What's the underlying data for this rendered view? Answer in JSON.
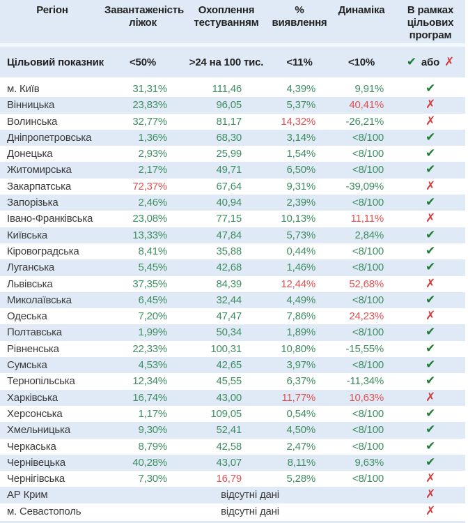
{
  "colors": {
    "row_stripe": "#dfeaf6",
    "value_good": "#3e8e62",
    "value_bad": "#e05252",
    "check_mark": "#1d7b33",
    "cross_mark": "#d23b3b",
    "text": "#3b3b3b",
    "header_text": "#222222"
  },
  "marks": {
    "check": "✔",
    "cross": "✗"
  },
  "header": {
    "col_labels": [
      "Регіон",
      "Завантаженість\nліжок",
      "Охоплення\nтестуванням",
      "%\nвиявлення",
      "Динаміка",
      "В рамках\nцільових\nпрограм"
    ]
  },
  "target_row": {
    "label": "Цільовий показник",
    "values": [
      "<50%",
      ">24 на 100 тис.",
      "<11%",
      "<10%"
    ],
    "legend_check": "✔",
    "legend_or": "або",
    "legend_cross": "✗"
  },
  "chart_data": {
    "type": "table",
    "columns": [
      "Регіон",
      "Завантаженість ліжок",
      "Охоплення тестуванням",
      "% виявлення",
      "Динаміка",
      "В рамках цільових програм"
    ],
    "target_thresholds": [
      "<50%",
      ">24 на 100 тис.",
      "<11%",
      "<10%",
      "✔ або ✗"
    ],
    "missing_data_label": "відсутні дані",
    "rows": [
      {
        "region": "м. Київ",
        "values": [
          [
            "31,31%",
            "green"
          ],
          [
            "111,46",
            "green"
          ],
          [
            "4,39%",
            "green"
          ],
          [
            "9,91%",
            "green"
          ]
        ],
        "meets": "check"
      },
      {
        "region": "Вінницька",
        "values": [
          [
            "23,83%",
            "green"
          ],
          [
            "96,05",
            "green"
          ],
          [
            "5,37%",
            "green"
          ],
          [
            "40,41%",
            "red"
          ]
        ],
        "meets": "cross"
      },
      {
        "region": "Волинська",
        "values": [
          [
            "32,77%",
            "green"
          ],
          [
            "81,17",
            "green"
          ],
          [
            "14,32%",
            "red"
          ],
          [
            "-26,21%",
            "green"
          ]
        ],
        "meets": "cross"
      },
      {
        "region": "Дніпропетровська",
        "values": [
          [
            "1,36%",
            "green"
          ],
          [
            "68,30",
            "green"
          ],
          [
            "3,14%",
            "green"
          ],
          [
            "<8/100",
            "green"
          ]
        ],
        "meets": "check"
      },
      {
        "region": "Донецька",
        "values": [
          [
            "2,93%",
            "green"
          ],
          [
            "25,99",
            "green"
          ],
          [
            "1,54%",
            "green"
          ],
          [
            "<8/100",
            "green"
          ]
        ],
        "meets": "check"
      },
      {
        "region": "Житомирська",
        "values": [
          [
            "2,17%",
            "green"
          ],
          [
            "49,71",
            "green"
          ],
          [
            "6,50%",
            "green"
          ],
          [
            "<8/100",
            "green"
          ]
        ],
        "meets": "check"
      },
      {
        "region": "Закарпатська",
        "values": [
          [
            "72,37%",
            "red"
          ],
          [
            "67,64",
            "green"
          ],
          [
            "9,31%",
            "green"
          ],
          [
            "-39,09%",
            "green"
          ]
        ],
        "meets": "cross"
      },
      {
        "region": "Запорізька",
        "values": [
          [
            "2,46%",
            "green"
          ],
          [
            "40,94",
            "green"
          ],
          [
            "2,39%",
            "green"
          ],
          [
            "<8/100",
            "green"
          ]
        ],
        "meets": "check"
      },
      {
        "region": "Івано-Франківська",
        "values": [
          [
            "23,08%",
            "green"
          ],
          [
            "77,15",
            "green"
          ],
          [
            "10,13%",
            "green"
          ],
          [
            "11,11%",
            "red"
          ]
        ],
        "meets": "cross"
      },
      {
        "region": "Київська",
        "values": [
          [
            "13,33%",
            "green"
          ],
          [
            "47,84",
            "green"
          ],
          [
            "5,73%",
            "green"
          ],
          [
            "2,84%",
            "green"
          ]
        ],
        "meets": "check"
      },
      {
        "region": "Кіровоградська",
        "values": [
          [
            "8,41%",
            "green"
          ],
          [
            "35,88",
            "green"
          ],
          [
            "0,44%",
            "green"
          ],
          [
            "<8/100",
            "green"
          ]
        ],
        "meets": "check"
      },
      {
        "region": "Луганська",
        "values": [
          [
            "5,45%",
            "green"
          ],
          [
            "42,68",
            "green"
          ],
          [
            "1,46%",
            "green"
          ],
          [
            "<8/100",
            "green"
          ]
        ],
        "meets": "check"
      },
      {
        "region": "Львівська",
        "values": [
          [
            "37,35%",
            "green"
          ],
          [
            "84,39",
            "green"
          ],
          [
            "12,44%",
            "red"
          ],
          [
            "52,68%",
            "red"
          ]
        ],
        "meets": "cross"
      },
      {
        "region": "Миколаївська",
        "values": [
          [
            "6,45%",
            "green"
          ],
          [
            "32,44",
            "green"
          ],
          [
            "4,49%",
            "green"
          ],
          [
            "<8/100",
            "green"
          ]
        ],
        "meets": "check"
      },
      {
        "region": "Одеська",
        "values": [
          [
            "7,20%",
            "green"
          ],
          [
            "47,47",
            "green"
          ],
          [
            "7,86%",
            "green"
          ],
          [
            "24,23%",
            "red"
          ]
        ],
        "meets": "cross"
      },
      {
        "region": "Полтавська",
        "values": [
          [
            "1,99%",
            "green"
          ],
          [
            "50,34",
            "green"
          ],
          [
            "1,89%",
            "green"
          ],
          [
            "<8/100",
            "green"
          ]
        ],
        "meets": "check"
      },
      {
        "region": "Рівненська",
        "values": [
          [
            "22,33%",
            "green"
          ],
          [
            "100,31",
            "green"
          ],
          [
            "10,80%",
            "green"
          ],
          [
            "-15,55%",
            "green"
          ]
        ],
        "meets": "check"
      },
      {
        "region": "Сумська",
        "values": [
          [
            "4,53%",
            "green"
          ],
          [
            "42,65",
            "green"
          ],
          [
            "3,97%",
            "green"
          ],
          [
            "<8/100",
            "green"
          ]
        ],
        "meets": "check"
      },
      {
        "region": "Тернопільська",
        "values": [
          [
            "12,34%",
            "green"
          ],
          [
            "45,55",
            "green"
          ],
          [
            "6,37%",
            "green"
          ],
          [
            "-11,34%",
            "green"
          ]
        ],
        "meets": "check"
      },
      {
        "region": "Харківська",
        "values": [
          [
            "16,74%",
            "green"
          ],
          [
            "43,00",
            "green"
          ],
          [
            "11,77%",
            "red"
          ],
          [
            "10,63%",
            "red"
          ]
        ],
        "meets": "cross"
      },
      {
        "region": "Херсонська",
        "values": [
          [
            "1,17%",
            "green"
          ],
          [
            "109,05",
            "green"
          ],
          [
            "0,54%",
            "green"
          ],
          [
            "<8/100",
            "green"
          ]
        ],
        "meets": "check"
      },
      {
        "region": "Хмельницька",
        "values": [
          [
            "9,30%",
            "green"
          ],
          [
            "52,41",
            "green"
          ],
          [
            "4,50%",
            "green"
          ],
          [
            "<8/100",
            "green"
          ]
        ],
        "meets": "check"
      },
      {
        "region": "Черкаська",
        "values": [
          [
            "8,79%",
            "green"
          ],
          [
            "42,58",
            "green"
          ],
          [
            "2,47%",
            "green"
          ],
          [
            "<8/100",
            "green"
          ]
        ],
        "meets": "check"
      },
      {
        "region": "Чернівецька",
        "values": [
          [
            "40,28%",
            "green"
          ],
          [
            "43,07",
            "green"
          ],
          [
            "8,11%",
            "green"
          ],
          [
            "9,63%",
            "green"
          ]
        ],
        "meets": "check"
      },
      {
        "region": "Чернігівська",
        "values": [
          [
            "7,30%",
            "green"
          ],
          [
            "16,79",
            "red"
          ],
          [
            "5,28%",
            "green"
          ],
          [
            "<8/100",
            "green"
          ]
        ],
        "meets": "cross"
      },
      {
        "region": "АР Крим",
        "merged": "відсутні дані",
        "meets": "cross"
      },
      {
        "region": "м. Севастополь",
        "merged": "відсутні дані",
        "meets": "cross"
      }
    ]
  }
}
